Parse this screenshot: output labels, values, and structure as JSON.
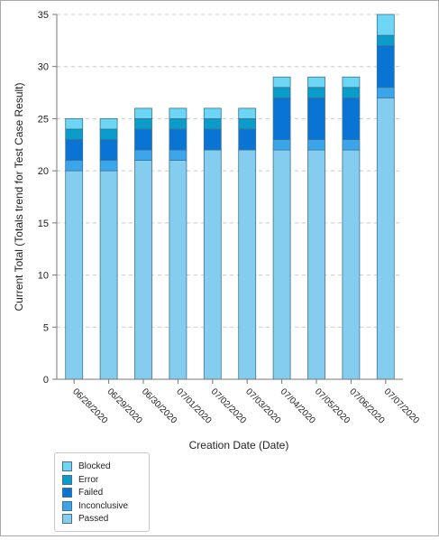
{
  "chart_data": {
    "type": "bar",
    "stacked": true,
    "xlabel": "Creation Date (Date)",
    "ylabel": "Current Total (Totals trend for Test Case Result)",
    "ylim": [
      0,
      35
    ],
    "yticks": [
      0,
      5,
      10,
      15,
      20,
      25,
      30,
      35
    ],
    "grid": true,
    "legend_position": "bottom-left",
    "categories": [
      "06/28/2020",
      "06/29/2020",
      "06/30/2020",
      "07/01/2020",
      "07/02/2020",
      "07/03/2020",
      "07/04/2020",
      "07/05/2020",
      "07/06/2020",
      "07/07/2020"
    ],
    "series": [
      {
        "name": "Passed",
        "color": "#85cdee",
        "values": [
          20,
          20,
          21,
          21,
          22,
          22,
          22,
          22,
          22,
          27
        ]
      },
      {
        "name": "Inconclusive",
        "color": "#3ba5ec",
        "values": [
          1,
          1,
          1,
          1,
          0,
          0,
          1,
          1,
          1,
          1
        ]
      },
      {
        "name": "Failed",
        "color": "#0a74d4",
        "values": [
          2,
          2,
          2,
          2,
          2,
          2,
          4,
          4,
          4,
          4
        ]
      },
      {
        "name": "Error",
        "color": "#0b9cc9",
        "values": [
          1,
          1,
          1,
          1,
          1,
          1,
          1,
          1,
          1,
          1
        ]
      },
      {
        "name": "Blocked",
        "color": "#6cd6f4",
        "values": [
          1,
          1,
          1,
          1,
          1,
          1,
          1,
          1,
          1,
          2
        ]
      }
    ],
    "legend": [
      "Blocked",
      "Error",
      "Failed",
      "Inconclusive",
      "Passed"
    ]
  }
}
